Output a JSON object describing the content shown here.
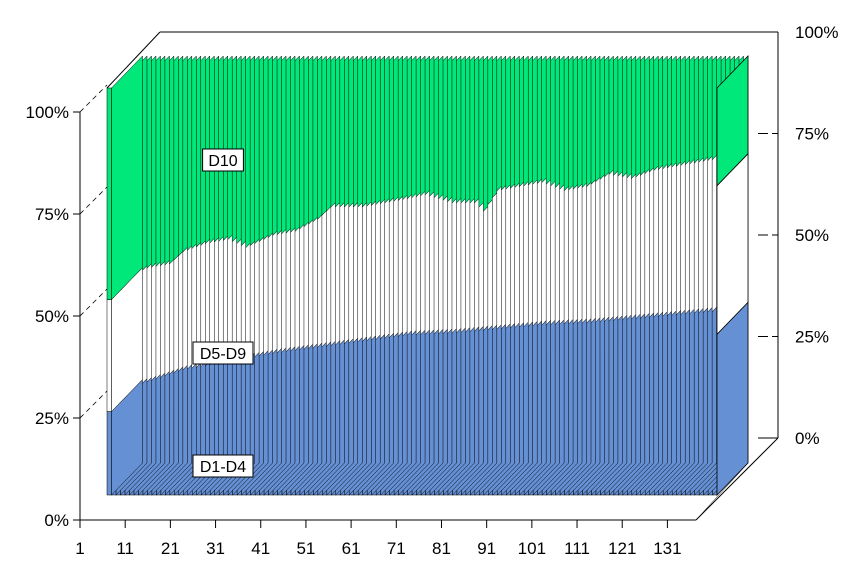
{
  "chart_data": {
    "type": "area",
    "stacked_percent": true,
    "three_d": true,
    "x": {
      "min": 1,
      "max": 136,
      "ticks": [
        1,
        11,
        21,
        31,
        41,
        51,
        61,
        71,
        81,
        91,
        101,
        111,
        121,
        131
      ],
      "tick_labels": [
        "1",
        "11",
        "21",
        "31",
        "41",
        "51",
        "61",
        "71",
        "81",
        "91",
        "101",
        "111",
        "121",
        "131"
      ]
    },
    "y": {
      "min": 0,
      "max": 100,
      "ticks": [
        0,
        25,
        50,
        75,
        100
      ],
      "left_tick_labels": [
        "0%",
        "25%",
        "50%",
        "75%",
        "100%"
      ],
      "right_tick_labels": [
        "0%",
        "25%",
        "50%",
        "75%",
        "100%"
      ]
    },
    "series": [
      {
        "name": "D1-D4",
        "color": "#6690d4",
        "anchors": [
          [
            1,
            20.5
          ],
          [
            3,
            21
          ],
          [
            11,
            24
          ],
          [
            21,
            26
          ],
          [
            31,
            28
          ],
          [
            41,
            29.5
          ],
          [
            51,
            31
          ],
          [
            61,
            32.5
          ],
          [
            71,
            33
          ],
          [
            81,
            34
          ],
          [
            91,
            35
          ],
          [
            101,
            35.5
          ],
          [
            111,
            36.5
          ],
          [
            121,
            37.5
          ],
          [
            131,
            38.5
          ],
          [
            136,
            39.5
          ]
        ]
      },
      {
        "name": "D5-D9",
        "color": "#ffffff",
        "anchors": [
          [
            1,
            48
          ],
          [
            3,
            49
          ],
          [
            8,
            50
          ],
          [
            11,
            53
          ],
          [
            16,
            55
          ],
          [
            21,
            56
          ],
          [
            25,
            54
          ],
          [
            31,
            57
          ],
          [
            36,
            58
          ],
          [
            41,
            61
          ],
          [
            44,
            64
          ],
          [
            51,
            64
          ],
          [
            56,
            65
          ],
          [
            61,
            66
          ],
          [
            65,
            67
          ],
          [
            71,
            65
          ],
          [
            76,
            65
          ],
          [
            78,
            63
          ],
          [
            81,
            68
          ],
          [
            86,
            69
          ],
          [
            91,
            70
          ],
          [
            96,
            68
          ],
          [
            101,
            69
          ],
          [
            106,
            72
          ],
          [
            111,
            71
          ],
          [
            116,
            73
          ],
          [
            121,
            74
          ],
          [
            126,
            75
          ],
          [
            131,
            76
          ],
          [
            136,
            76
          ]
        ]
      },
      {
        "name": "D10",
        "color": "#00e87a",
        "anchors": [
          [
            1,
            100
          ],
          [
            136,
            100
          ]
        ]
      }
    ],
    "annotations": [
      "D10",
      "D5-D9",
      "D1-D4"
    ],
    "grid": false
  }
}
